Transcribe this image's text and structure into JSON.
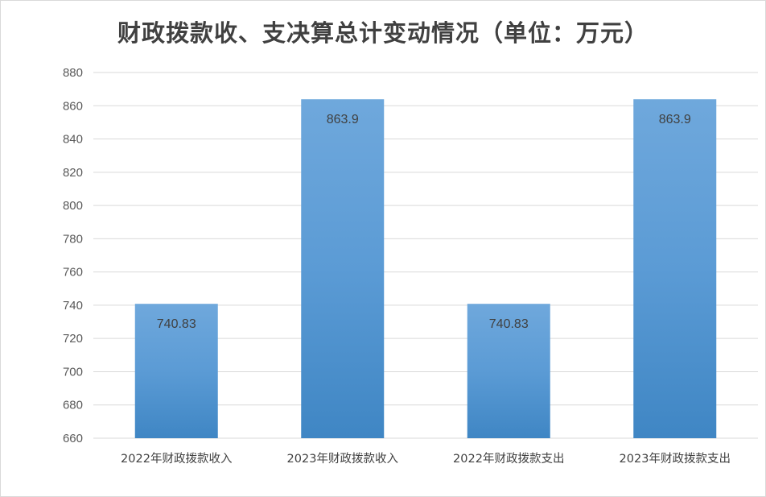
{
  "chart_data": {
    "type": "bar",
    "title": "财政拨款收、支决算总计变动情况（单位：万元）",
    "categories": [
      "2022年财政拨款收入",
      "2023年财政拨款收入",
      "2022年财政拨款支出",
      "2023年财政拨款支出"
    ],
    "values": [
      740.83,
      863.9,
      740.83,
      863.9
    ],
    "data_labels": [
      "740.83",
      "863.9",
      "740.83",
      "863.9"
    ],
    "xlabel": "",
    "ylabel": "",
    "ylim": [
      660,
      880
    ],
    "yticks": [
      660,
      680,
      700,
      720,
      740,
      760,
      780,
      800,
      820,
      840,
      860,
      880
    ],
    "grid": true,
    "legend": "none",
    "colors": {
      "bar_top": "#6fa8dc",
      "bar_mid": "#5b9bd5",
      "bar_bottom": "#3f86c4",
      "grid": "#d9d9d9"
    }
  }
}
